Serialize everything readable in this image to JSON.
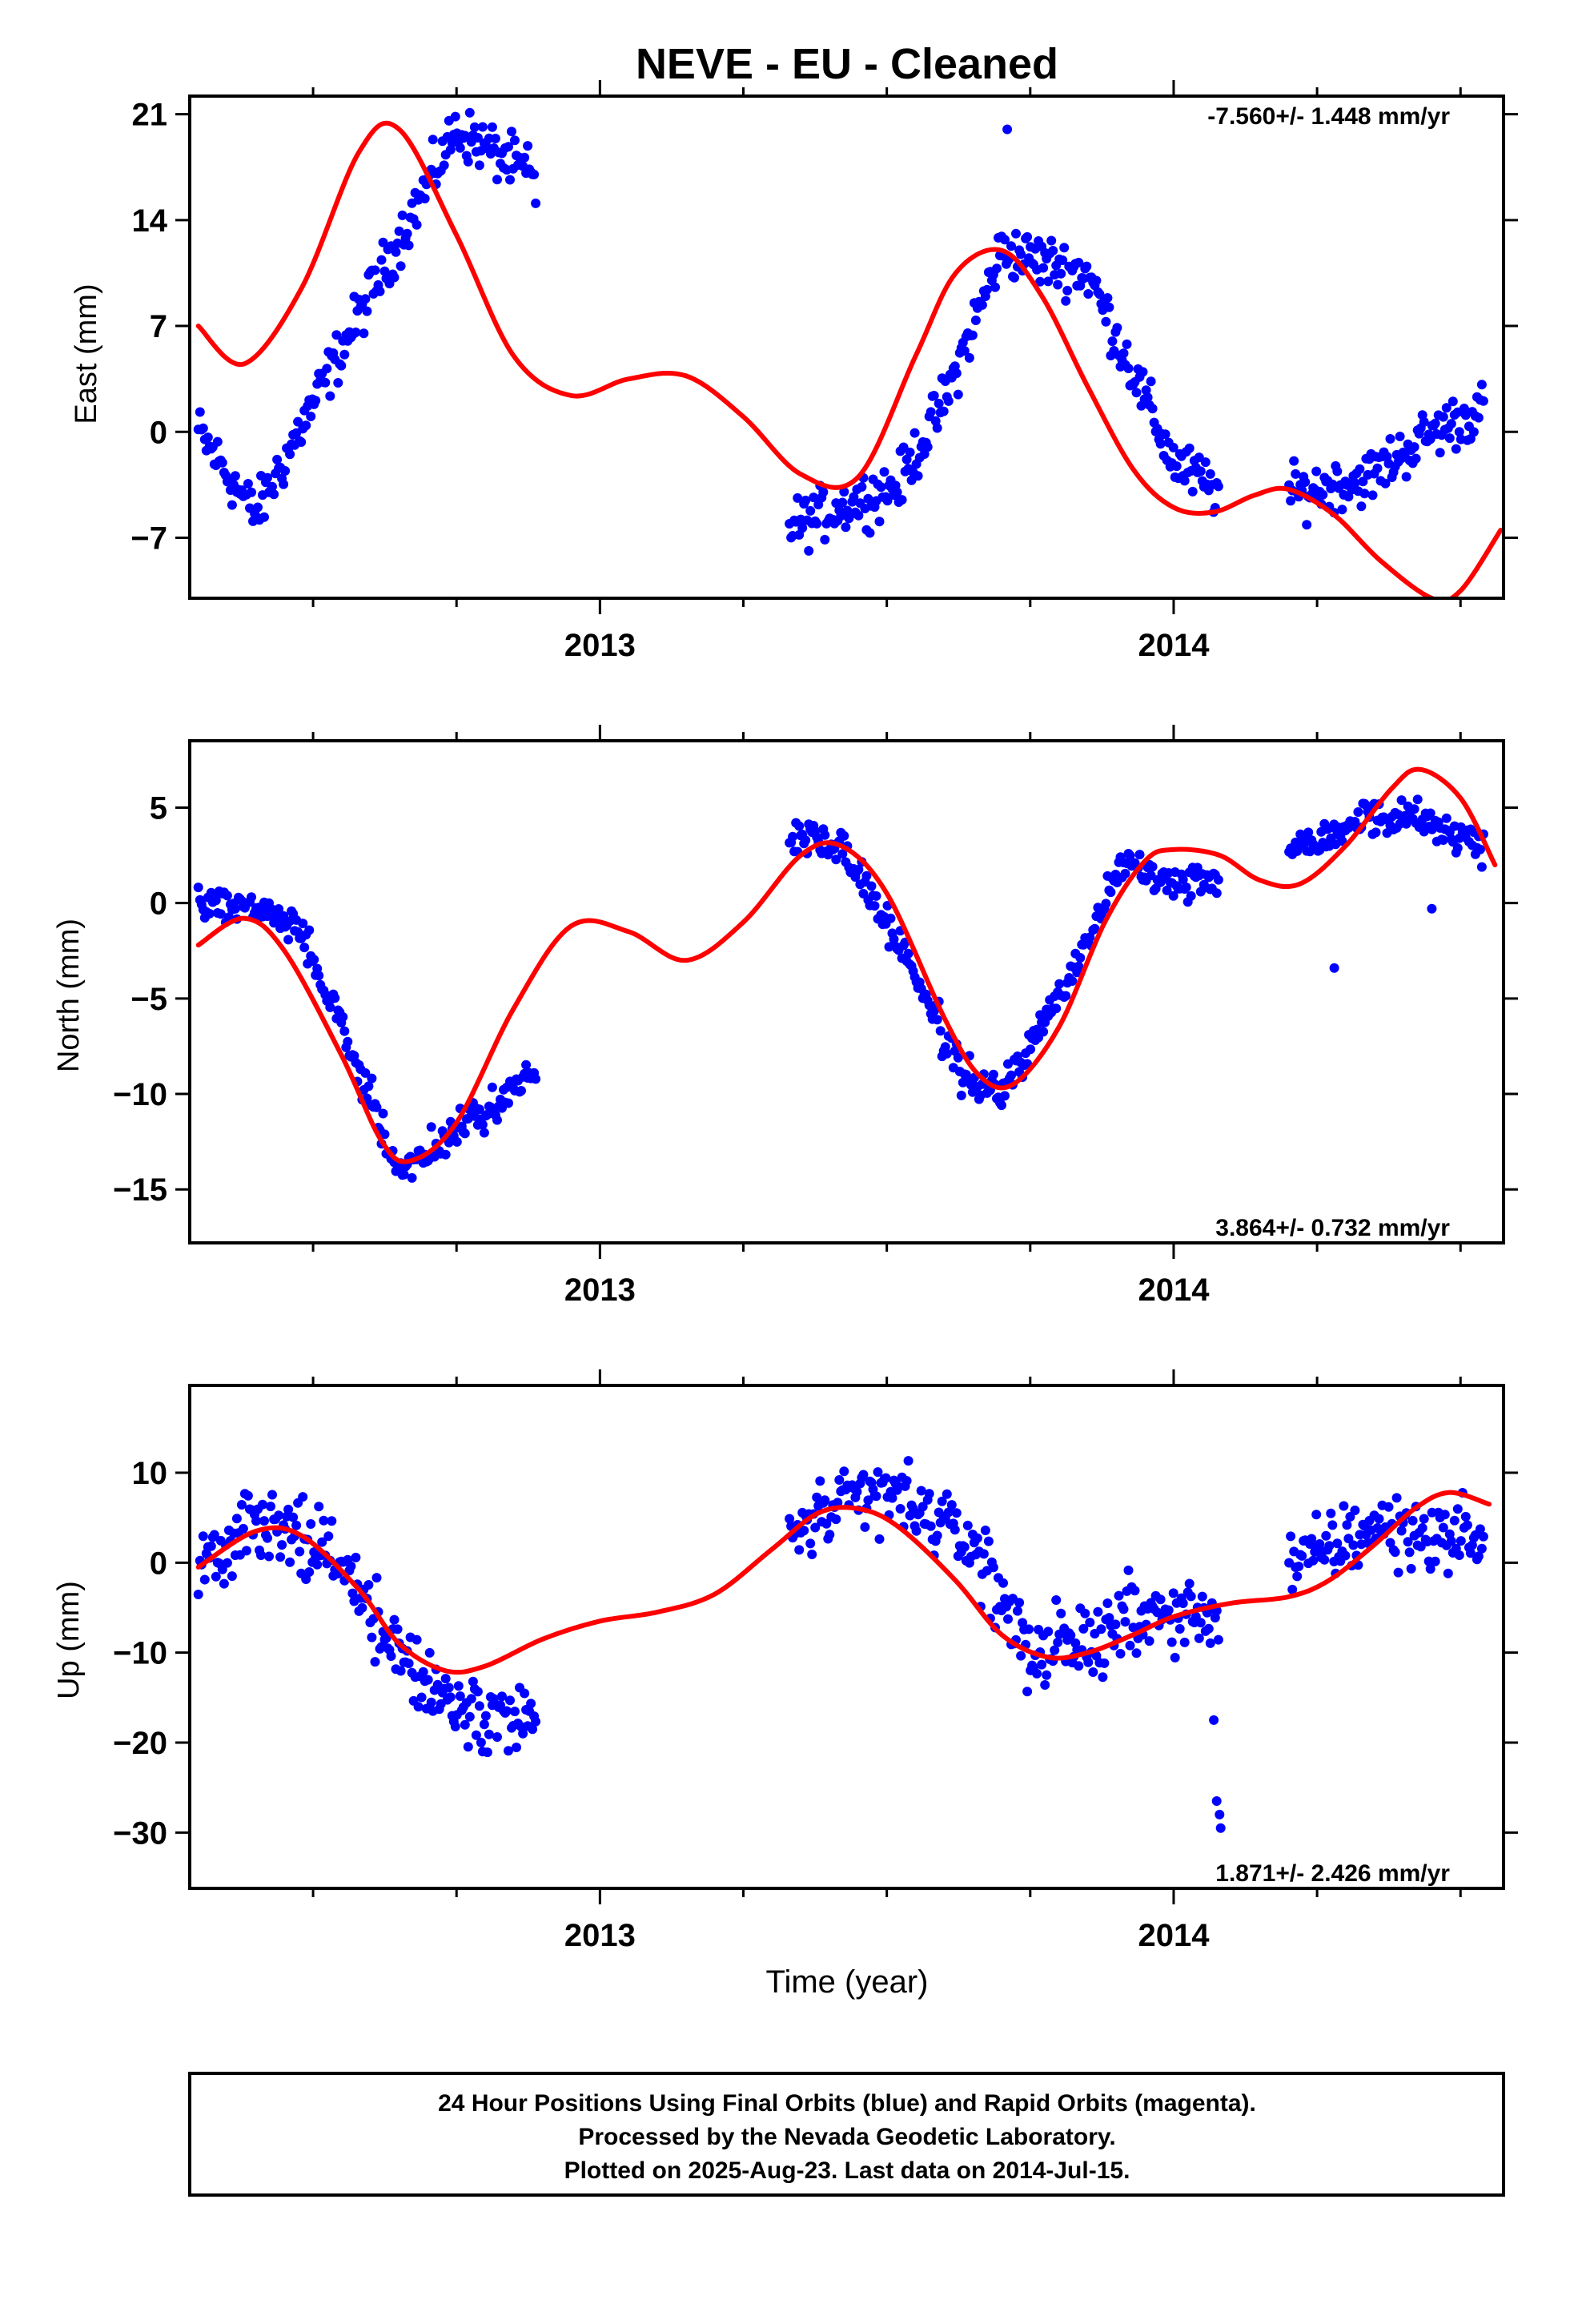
{
  "title": "NEVE  - EU - Cleaned",
  "xlabel": "Time (year)",
  "footer": {
    "line1": "24 Hour Positions Using Final Orbits (blue) and Rapid Orbits (magenta).",
    "line2": "Processed by the Nevada Geodetic Laboratory.",
    "line3": "Plotted on 2025-Aug-23. Last data on 2014-Jul-15."
  },
  "colors": {
    "data": "#0000ff",
    "fit": "#ff0000",
    "axes": "#000000"
  },
  "chart_data": [
    {
      "type": "scatter",
      "component": "east",
      "ylabel": "East (mm)",
      "rate_text": "-7.560+/- 1.448 mm/yr",
      "rate_position": "top-right",
      "xlim": [
        2012.285,
        2014.575
      ],
      "ylim": [
        -11.0,
        22.2
      ],
      "yticks": [
        21,
        14,
        7,
        0,
        -7
      ],
      "xticks": [
        2013,
        2014
      ],
      "grid": false,
      "knots_x": [
        2012.3,
        2012.4,
        2012.55,
        2012.75,
        2012.88,
        2013.05,
        2013.2,
        2013.35,
        2013.52,
        2013.6,
        2013.7,
        2013.85,
        2014.0,
        2014.1,
        2014.22,
        2014.34,
        2014.45,
        2014.54
      ],
      "knots_y": [
        0.0,
        -5.5,
        5.5,
        20.0,
        17.0,
        -8.0,
        -8.0,
        -6.0,
        -3.5,
        2.0,
        12.0,
        10.5,
        -2.0,
        -4.5,
        -4.0,
        -3.0,
        0.0,
        1.5
      ],
      "noise": 1.5,
      "gaps": [
        [
          2012.89,
          2013.33
        ],
        [
          2014.08,
          2014.2
        ]
      ],
      "sample_step": 0.0028,
      "fit_anchors_x": [
        2012.3,
        2012.38,
        2012.48,
        2012.58,
        2012.65,
        2012.75,
        2012.85,
        2012.95,
        2013.05,
        2013.15,
        2013.25,
        2013.35,
        2013.45,
        2013.55,
        2013.62,
        2013.7,
        2013.77,
        2013.85,
        2013.93,
        2014.0,
        2014.07,
        2014.14,
        2014.2,
        2014.28,
        2014.36,
        2014.45,
        2014.5,
        2014.57
      ],
      "fit_anchors_y": [
        7.0,
        4.5,
        9.5,
        18.5,
        20.0,
        13.0,
        5.0,
        2.4,
        3.5,
        3.7,
        1.0,
        -2.8,
        -3.0,
        5.0,
        10.5,
        12.0,
        9.0,
        3.0,
        -2.5,
        -5.0,
        -5.3,
        -4.2,
        -3.8,
        -5.5,
        -8.5,
        -11.0,
        -10.5,
        -6.5
      ],
      "outliers_x": [
        2013.71
      ],
      "outliers_y": [
        20.0
      ]
    },
    {
      "type": "scatter",
      "component": "north",
      "ylabel": "North (mm)",
      "rate_text": "3.864+/- 0.732 mm/yr",
      "rate_position": "bottom-right",
      "xlim": [
        2012.285,
        2014.575
      ],
      "ylim": [
        -17.8,
        8.5
      ],
      "yticks": [
        5,
        0,
        -5,
        -10,
        -15
      ],
      "xticks": [
        2013,
        2014
      ],
      "grid": false,
      "knots_x": [
        2012.3,
        2012.38,
        2012.48,
        2012.65,
        2012.75,
        2012.88,
        2013.05,
        2013.2,
        2013.35,
        2013.42,
        2013.53,
        2013.63,
        2013.7,
        2013.8,
        2013.92,
        2014.0,
        2014.1,
        2014.22,
        2014.33,
        2014.42,
        2014.54
      ],
      "knots_y": [
        0.0,
        0.0,
        -1.5,
        -14.0,
        -12.0,
        -9.0,
        0.0,
        0.0,
        3.5,
        3.0,
        -2.5,
        -9.0,
        -10.0,
        -5.0,
        2.5,
        1.0,
        1.5,
        3.0,
        4.5,
        4.5,
        3.0
      ],
      "noise": 0.8,
      "gaps": [
        [
          2012.89,
          2013.33
        ],
        [
          2014.08,
          2014.2
        ]
      ],
      "sample_step": 0.0028,
      "fit_anchors_x": [
        2012.3,
        2012.38,
        2012.45,
        2012.55,
        2012.62,
        2012.67,
        2012.75,
        2012.85,
        2012.95,
        2013.05,
        2013.15,
        2013.25,
        2013.35,
        2013.42,
        2013.5,
        2013.6,
        2013.66,
        2013.72,
        2013.8,
        2013.88,
        2013.95,
        2014.0,
        2014.08,
        2014.15,
        2014.22,
        2014.3,
        2014.38,
        2014.43,
        2014.5,
        2014.56
      ],
      "fit_anchors_y": [
        -2.2,
        -0.8,
        -2.5,
        -8.0,
        -12.5,
        -13.5,
        -11.5,
        -5.5,
        -1.2,
        -1.5,
        -3.0,
        -1.0,
        2.5,
        3.0,
        0.5,
        -6.0,
        -9.0,
        -9.5,
        -6.5,
        -1.0,
        2.2,
        2.8,
        2.5,
        1.2,
        1.0,
        3.0,
        6.0,
        7.0,
        5.5,
        2.0
      ],
      "outliers_x": [
        2014.28,
        2014.45
      ],
      "outliers_y": [
        -3.4,
        -0.3
      ]
    },
    {
      "type": "scatter",
      "component": "up",
      "ylabel": "Up (mm)",
      "rate_text": "1.871+/- 2.426 mm/yr",
      "rate_position": "bottom-right",
      "xlim": [
        2012.285,
        2014.575
      ],
      "ylim": [
        -36.2,
        19.7
      ],
      "yticks": [
        10,
        0,
        -10,
        -20,
        -30
      ],
      "xticks": [
        2013,
        2014
      ],
      "grid": false,
      "knots_x": [
        2012.3,
        2012.4,
        2012.5,
        2012.6,
        2012.7,
        2012.88,
        2013.35,
        2013.5,
        2013.65,
        2013.75,
        2013.85,
        2013.92,
        2014.0,
        2014.1,
        2014.22,
        2014.35,
        2014.45,
        2014.54
      ],
      "knots_y": [
        0.0,
        4.0,
        3.0,
        -5.0,
        -14.0,
        -18.0,
        4.0,
        8.0,
        2.0,
        -10.0,
        -9.0,
        -6.0,
        -6.0,
        -5.0,
        0.0,
        4.0,
        3.0,
        3.0
      ],
      "noise": 3.5,
      "gaps": [
        [
          2012.89,
          2013.33
        ],
        [
          2014.08,
          2014.2
        ]
      ],
      "sample_step": 0.0028,
      "fit_anchors_x": [
        2012.3,
        2012.4,
        2012.48,
        2012.58,
        2012.65,
        2012.73,
        2012.8,
        2012.9,
        2013.0,
        2013.1,
        2013.2,
        2013.3,
        2013.38,
        2013.45,
        2013.52,
        2013.62,
        2013.7,
        2013.78,
        2013.85,
        2013.93,
        2014.0,
        2014.1,
        2014.2,
        2014.27,
        2014.35,
        2014.42,
        2014.48,
        2014.55
      ],
      "fit_anchors_y": [
        -0.5,
        3.5,
        3.0,
        -3.0,
        -9.0,
        -12.0,
        -11.5,
        -8.5,
        -6.5,
        -5.5,
        -3.5,
        1.5,
        5.5,
        6.0,
        4.0,
        -2.0,
        -8.0,
        -10.5,
        -10.0,
        -8.0,
        -6.0,
        -4.5,
        -3.8,
        -2.0,
        2.0,
        6.0,
        7.8,
        6.5
      ],
      "outliers_x": [
        2014.07,
        2014.075,
        2014.08,
        2014.082
      ],
      "outliers_y": [
        -17.5,
        -26.5,
        -28.0,
        -29.5
      ]
    }
  ]
}
